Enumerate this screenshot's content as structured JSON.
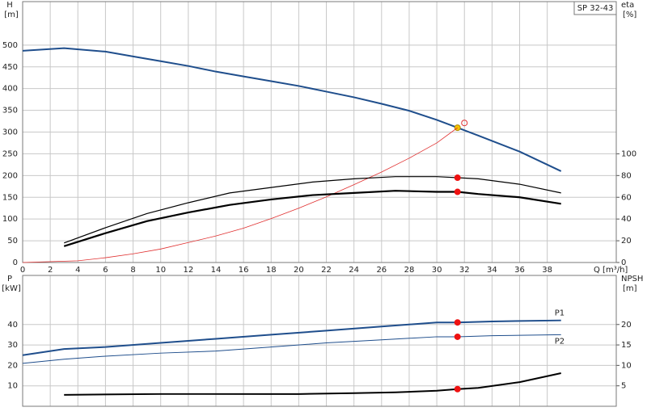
{
  "chart_data": [
    {
      "type": "line",
      "title": "SP 32-43",
      "y_label": "H",
      "y_unit": "[m]",
      "y2_label": "eta",
      "y2_unit": "[%]",
      "x_label": "Q [m³/h]",
      "xlim": [
        0,
        43
      ],
      "xticks": [
        0,
        2,
        4,
        6,
        8,
        10,
        12,
        14,
        16,
        18,
        20,
        22,
        24,
        26,
        28,
        30,
        32,
        34,
        36,
        38
      ],
      "ylim": [
        0,
        600
      ],
      "yticks": [
        0,
        50,
        100,
        150,
        200,
        250,
        300,
        350,
        400,
        450,
        500
      ],
      "y2lim": [
        0,
        240
      ],
      "y2ticks": [
        0,
        20,
        40,
        60,
        80,
        100
      ],
      "grid": true,
      "series": [
        {
          "color": "#1f4e8c",
          "line_width": 2,
          "x": [
            0,
            3,
            6,
            8,
            10,
            12,
            14,
            16,
            18,
            20,
            22,
            24,
            26,
            28,
            30,
            31.5,
            33,
            36,
            39
          ],
          "values": [
            487,
            493,
            485,
            474,
            463,
            452,
            439,
            428,
            417,
            406,
            393,
            380,
            365,
            349,
            328,
            310,
            292,
            255,
            210
          ],
          "markers": [
            {
              "x": 31.5,
              "value": 310,
              "color": "#f5c400",
              "filled": true
            }
          ]
        },
        {
          "color": "#e03030",
          "line_width": 0.8,
          "x": [
            0,
            4,
            6,
            8,
            10,
            12,
            14,
            16,
            18,
            20,
            22,
            24,
            26,
            28,
            30,
            31.5
          ],
          "values": [
            0,
            4,
            11,
            20,
            31,
            46,
            61,
            79,
            101,
            125,
            151,
            179,
            208,
            240,
            275,
            310
          ],
          "markers": [
            {
              "x": 32,
              "value": 321,
              "color": "#e03030",
              "filled": false
            }
          ]
        },
        {
          "color": "#000000",
          "line_width": 1.2,
          "axis": "y2",
          "x": [
            3,
            6,
            9,
            12,
            15,
            18,
            21,
            24,
            27,
            30,
            31.5,
            33,
            36,
            39
          ],
          "values": [
            18,
            32,
            45,
            55,
            64,
            69,
            74,
            77,
            79,
            79,
            78,
            77,
            72,
            64
          ],
          "markers": [
            {
              "x": 31.5,
              "value": 78,
              "color": "#ee1111",
              "filled": true
            }
          ]
        },
        {
          "color": "#000000",
          "line_width": 2.2,
          "axis": "y2",
          "x": [
            3,
            6,
            9,
            12,
            15,
            18,
            21,
            24,
            27,
            30,
            31.5,
            33,
            36,
            39
          ],
          "values": [
            15,
            27,
            38,
            46,
            53,
            58,
            62,
            64,
            66,
            65,
            65,
            63,
            60,
            54
          ],
          "markers": [
            {
              "x": 31.5,
              "value": 65,
              "color": "#ee1111",
              "filled": true
            }
          ]
        }
      ]
    },
    {
      "type": "line",
      "y_label": "P",
      "y_unit": "[kW]",
      "y2_label": "NPSH",
      "y2_unit": "[m]",
      "xlim": [
        0,
        43
      ],
      "ylim": [
        0,
        64
      ],
      "yticks": [
        10,
        20,
        30,
        40
      ],
      "y2lim": [
        0,
        32
      ],
      "y2ticks": [
        5,
        10,
        15,
        20
      ],
      "grid": true,
      "series": [
        {
          "name": "P1",
          "color": "#1f4e8c",
          "line_width": 2,
          "x": [
            0,
            3,
            6,
            10,
            14,
            18,
            22,
            26,
            30,
            31.5,
            34,
            39
          ],
          "values": [
            25,
            28,
            29,
            31,
            33,
            35,
            37,
            39,
            41,
            41,
            41.5,
            42
          ],
          "markers": [
            {
              "x": 31.5,
              "value": 41,
              "color": "#ee1111",
              "filled": true
            }
          ]
        },
        {
          "name": "P2",
          "color": "#1f4e8c",
          "line_width": 1,
          "x": [
            0,
            3,
            6,
            10,
            14,
            18,
            22,
            26,
            30,
            31.5,
            34,
            39
          ],
          "values": [
            21,
            23,
            24.5,
            26,
            27,
            29,
            31,
            32.5,
            34,
            34,
            34.5,
            35
          ],
          "markers": [
            {
              "x": 31.5,
              "value": 34,
              "color": "#ee1111",
              "filled": true
            }
          ]
        },
        {
          "color": "#000000",
          "line_width": 2,
          "axis": "y2",
          "x": [
            3,
            10,
            20,
            24,
            27,
            30,
            31.5,
            33,
            36,
            39
          ],
          "values": [
            2.8,
            3,
            3,
            3.2,
            3.4,
            3.8,
            4.2,
            4.5,
            5.9,
            8.1
          ],
          "markers": [
            {
              "x": 31.5,
              "value": 4.2,
              "color": "#ee1111",
              "filled": true
            }
          ]
        }
      ]
    }
  ]
}
